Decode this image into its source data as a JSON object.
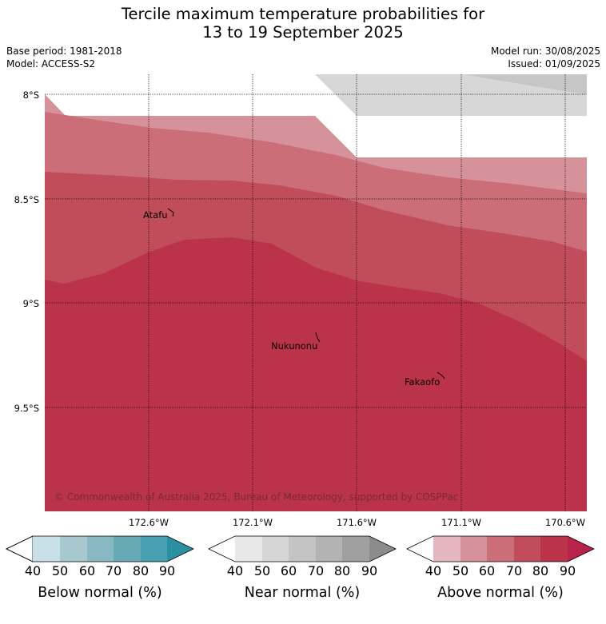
{
  "title_line1": "Tercile maximum temperature probabilities for",
  "title_line2": "13 to 19 September 2025",
  "base_period": "Base period: 1981-2018",
  "model": "Model: ACCESS-S2",
  "model_run": "Model run: 30/08/2025",
  "issued": "Issued: 01/09/2025",
  "copyright": "© Commonwealth of Australia 2025, Bureau of Meteorology, supported by COSPPac",
  "map": {
    "lat_ticks": [
      "8°S",
      "8.5°S",
      "9°S",
      "9.5°S"
    ],
    "lon_ticks": [
      "172.6°W",
      "172.1°W",
      "171.6°W",
      "171.1°W",
      "170.6°W"
    ],
    "places": [
      {
        "name": "Atafu"
      },
      {
        "name": "Nukunonu"
      },
      {
        "name": "Fakaofo"
      }
    ]
  },
  "legends": [
    {
      "name": "Below normal (%)",
      "ticks": [
        "40",
        "50",
        "60",
        "70",
        "80",
        "90"
      ],
      "colors": [
        "#ffffff",
        "#c8e1e8",
        "#a7c8ce",
        "#88b9c3",
        "#68a9b6",
        "#46a0b1",
        "#2a8fa0"
      ]
    },
    {
      "name": "Near normal (%)",
      "ticks": [
        "40",
        "50",
        "60",
        "70",
        "80",
        "90"
      ],
      "colors": [
        "#ffffff",
        "#e8e8e8",
        "#d6d6d6",
        "#c4c4c4",
        "#b3b3b3",
        "#a0a0a0",
        "#8c8c8c"
      ]
    },
    {
      "name": "Above normal (%)",
      "ticks": [
        "40",
        "50",
        "60",
        "70",
        "80",
        "90"
      ],
      "colors": [
        "#ffffff",
        "#e4b7be",
        "#d6929a",
        "#cb6e78",
        "#c14d5a",
        "#bb3349",
        "#b8234a"
      ]
    }
  ]
}
